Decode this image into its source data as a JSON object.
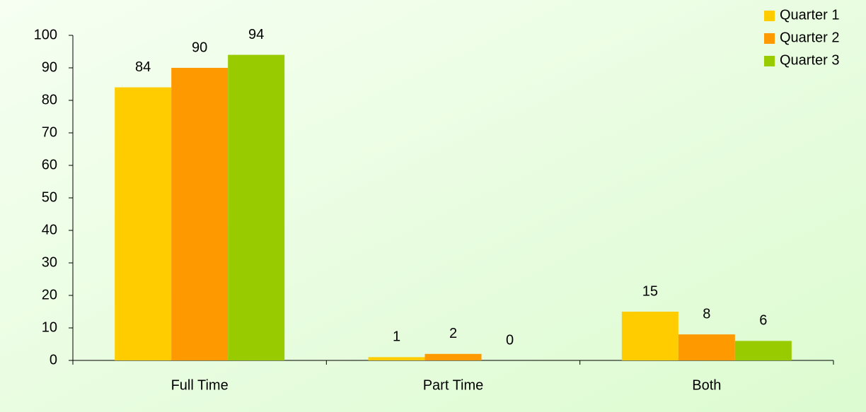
{
  "chart_data": {
    "type": "bar",
    "categories": [
      "Full Time",
      "Part Time",
      "Both"
    ],
    "series": [
      {
        "name": "Quarter 1",
        "color": "#ffcc00",
        "values": [
          84,
          1,
          15
        ]
      },
      {
        "name": "Quarter 2",
        "color": "#ff9900",
        "values": [
          90,
          2,
          8
        ]
      },
      {
        "name": "Quarter 3",
        "color": "#99cc00",
        "values": [
          94,
          0,
          6
        ]
      }
    ],
    "ylim": [
      0,
      100
    ],
    "yticks": [
      0,
      10,
      20,
      30,
      40,
      50,
      60,
      70,
      80,
      90,
      100
    ],
    "grid": false,
    "legend": "top-right",
    "data_labels": true
  }
}
